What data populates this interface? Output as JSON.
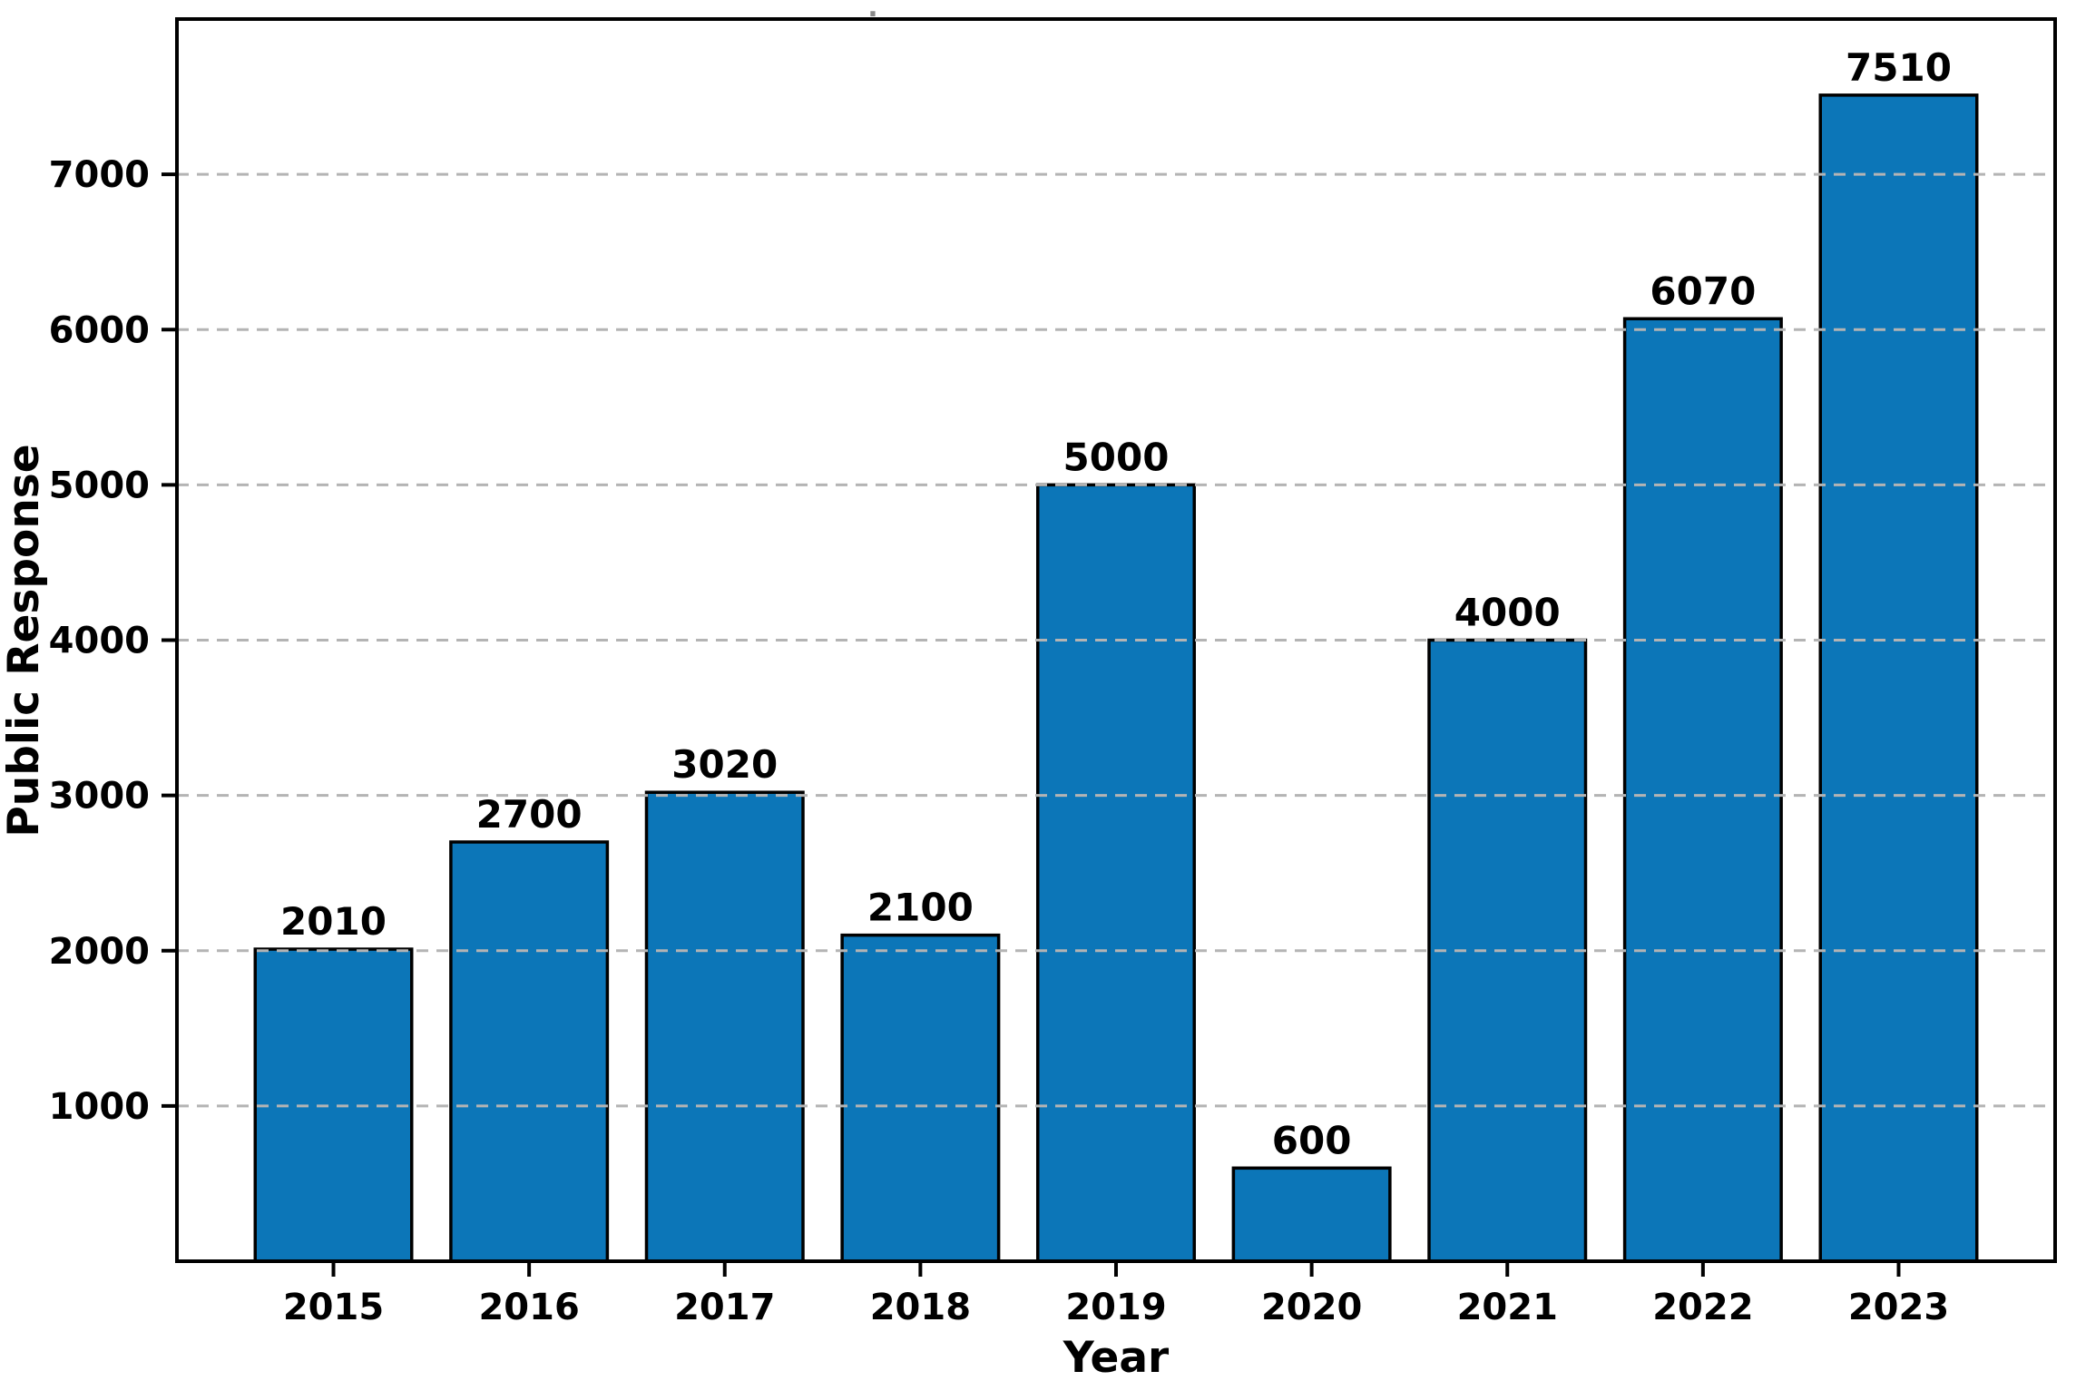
{
  "figure": {
    "title": ".",
    "xlabel": "Year",
    "ylabel": "Public Response"
  },
  "chart_data": {
    "type": "bar",
    "categories": [
      "2015",
      "2016",
      "2017",
      "2018",
      "2019",
      "2020",
      "2021",
      "2022",
      "2023"
    ],
    "values": [
      2010,
      2700,
      3020,
      2100,
      5000,
      600,
      4000,
      6070,
      7510
    ],
    "title": ".",
    "xlabel": "Year",
    "ylabel": "Public Response",
    "ylim": [
      0,
      8000
    ],
    "yticks": [
      1000,
      2000,
      3000,
      4000,
      5000,
      6000,
      7000
    ],
    "grid": "horizontal-dashed-over-bars",
    "legend_position": "none",
    "bar_color": "#0c76b8",
    "bar_edge_color": "#000000",
    "gridline_color": "#b4b4b4",
    "spine_color": "#000000",
    "value_labels_shown": true
  }
}
